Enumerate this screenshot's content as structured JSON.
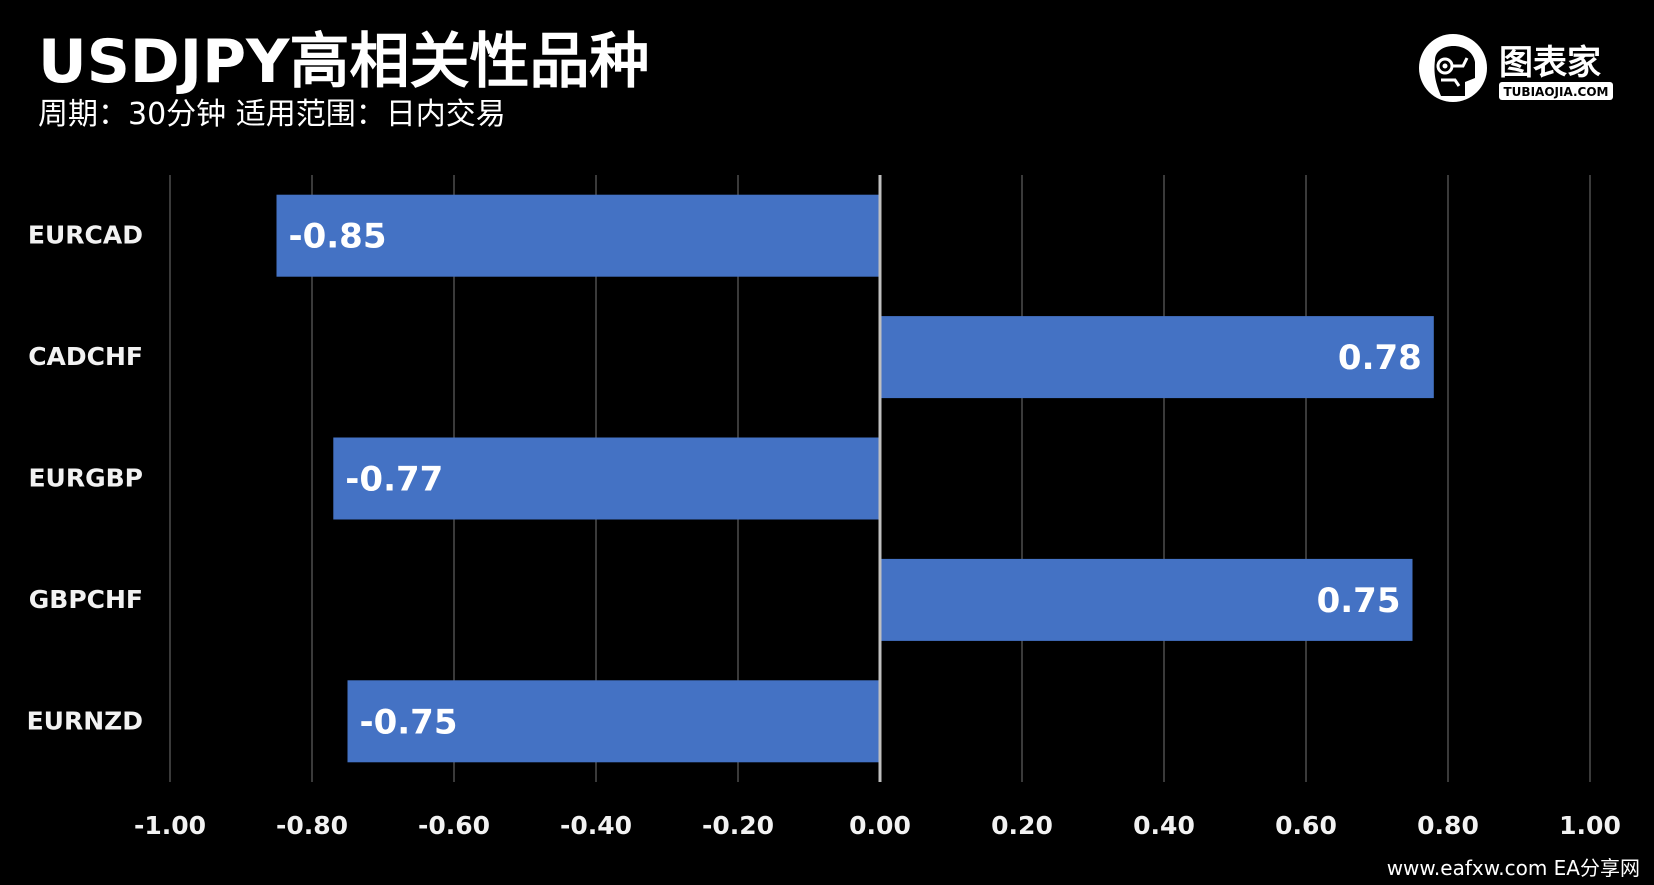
{
  "header": {
    "title": "USDJPY高相关性品种",
    "subtitle": "周期：30分钟  适用范围：日内交易"
  },
  "logo": {
    "name": "图表家",
    "domain": "TUBIAOJIA.COM",
    "icon": "robot-head-icon"
  },
  "watermark": "www.eafxw.com  EA分享网",
  "colors": {
    "background": "#000000",
    "bar": "#4472C4",
    "grid": "#3a3a3a",
    "axis": "#bfbfbf",
    "text": "#ffffff"
  },
  "chart_data": {
    "type": "bar",
    "orientation": "horizontal",
    "categories": [
      "EURCAD",
      "CADCHF",
      "EURGBP",
      "GBPCHF",
      "EURNZD"
    ],
    "values": [
      -0.85,
      0.78,
      -0.77,
      0.75,
      -0.75
    ],
    "data_labels": [
      "-0.85",
      "0.78",
      "-0.77",
      "0.75",
      "-0.75"
    ],
    "xlim": [
      -1.0,
      1.0
    ],
    "ticks": [
      -1.0,
      -0.8,
      -0.6,
      -0.4,
      -0.2,
      0.0,
      0.2,
      0.4,
      0.6,
      0.8,
      1.0
    ],
    "tick_labels": [
      "-1.00",
      "-0.80",
      "-0.60",
      "-0.40",
      "-0.20",
      "0.00",
      "0.20",
      "0.40",
      "0.60",
      "0.80",
      "1.00"
    ],
    "grid": true,
    "legend": "none"
  }
}
